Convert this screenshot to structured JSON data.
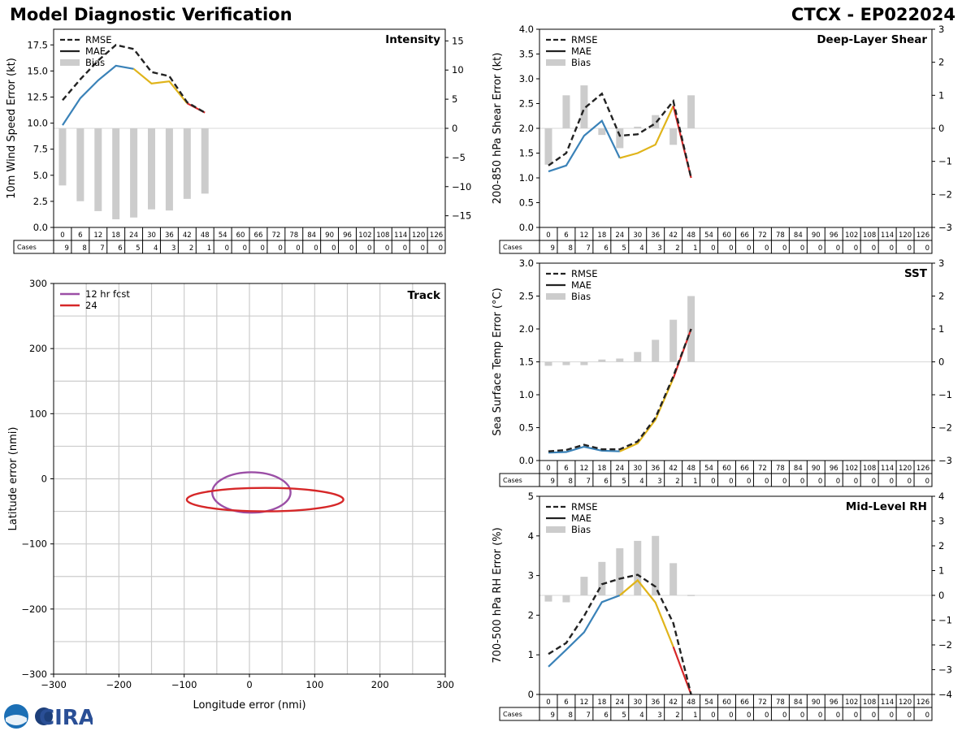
{
  "header": {
    "title": "Model Diagnostic Verification",
    "storm_id": "CTCX - EP022024"
  },
  "colors": {
    "seg1": "#3a82b8",
    "seg2": "#e0b41a",
    "seg3": "#d62728",
    "rmse": "#222222",
    "bias": "#cccccc",
    "ellipse12": "#9b4fa6",
    "ellipse24": "#d62728",
    "grid": "#cccccc"
  },
  "table": {
    "cases_label": "Cases",
    "hours": [
      "0",
      "6",
      "12",
      "18",
      "24",
      "30",
      "36",
      "42",
      "48",
      "54",
      "60",
      "66",
      "72",
      "78",
      "84",
      "90",
      "96",
      "102",
      "108",
      "114",
      "120",
      "126"
    ],
    "cases": [
      "9",
      "8",
      "7",
      "6",
      "5",
      "4",
      "3",
      "2",
      "1",
      "0",
      "0",
      "0",
      "0",
      "0",
      "0",
      "0",
      "0",
      "0",
      "0",
      "0",
      "0",
      "0"
    ]
  },
  "chart_data": [
    {
      "id": "intensity",
      "type": "line",
      "title": "Intensity",
      "ylabel": "10m Wind Speed Error (kt)",
      "ylim": [
        0,
        19
      ],
      "yticks": [
        "0.0",
        "2.5",
        "5.0",
        "7.5",
        "10.0",
        "12.5",
        "15.0",
        "17.5"
      ],
      "ytick_values": [
        0,
        2.5,
        5,
        7.5,
        10,
        12.5,
        15,
        17.5
      ],
      "y2lim": [
        -17,
        17
      ],
      "y2ticks": [
        "−15",
        "−10",
        "−5",
        "0",
        "5",
        "10",
        "15"
      ],
      "y2tick_values": [
        -15,
        -10,
        -5,
        0,
        5,
        10,
        15
      ],
      "legend": [
        "RMSE",
        "MAE",
        "Bias"
      ],
      "x": [
        0,
        6,
        12,
        18,
        24,
        30,
        36,
        42,
        48
      ],
      "rmse": [
        12.2,
        14.2,
        16.0,
        17.5,
        17.1,
        14.9,
        14.5,
        12.0,
        11.0
      ],
      "mae": [
        9.8,
        12.4,
        14.1,
        15.5,
        15.2,
        13.8,
        14.0,
        11.9,
        11.0
      ],
      "bias": [
        -9.8,
        -12.5,
        -14.2,
        -15.6,
        -15.3,
        -13.9,
        -14.1,
        -12.1,
        -11.2
      ]
    },
    {
      "id": "shear",
      "type": "line",
      "title": "Deep-Layer Shear",
      "ylabel": "200-850 hPa Shear Error (kt)",
      "ylim": [
        0,
        4
      ],
      "yticks": [
        "0.0",
        "0.5",
        "1.0",
        "1.5",
        "2.0",
        "2.5",
        "3.0",
        "3.5",
        "4.0"
      ],
      "ytick_values": [
        0,
        0.5,
        1,
        1.5,
        2,
        2.5,
        3,
        3.5,
        4
      ],
      "y2lim": [
        -3,
        3
      ],
      "y2ticks": [
        "−3",
        "−2",
        "−1",
        "0",
        "1",
        "2",
        "3"
      ],
      "y2tick_values": [
        -3,
        -2,
        -1,
        0,
        1,
        2,
        3
      ],
      "legend": [
        "RMSE",
        "MAE",
        "Bias"
      ],
      "x": [
        0,
        6,
        12,
        18,
        24,
        30,
        36,
        42,
        48
      ],
      "rmse": [
        1.25,
        1.5,
        2.4,
        2.7,
        1.85,
        1.88,
        2.1,
        2.55,
        1.0
      ],
      "mae": [
        1.13,
        1.25,
        1.85,
        2.15,
        1.4,
        1.5,
        1.67,
        2.45,
        1.0
      ],
      "bias": [
        -1.1,
        1.0,
        1.3,
        -0.2,
        -0.6,
        0.05,
        0.4,
        -0.5,
        1.0
      ]
    },
    {
      "id": "sst",
      "type": "line",
      "title": "SST",
      "ylabel": "Sea Surface Temp Error (°C)",
      "ylim": [
        0,
        3
      ],
      "yticks": [
        "0.0",
        "0.5",
        "1.0",
        "1.5",
        "2.0",
        "2.5",
        "3.0"
      ],
      "ytick_values": [
        0,
        0.5,
        1,
        1.5,
        2,
        2.5,
        3
      ],
      "y2lim": [
        -3,
        3
      ],
      "y2ticks": [
        "−3",
        "−2",
        "−1",
        "0",
        "1",
        "2",
        "3"
      ],
      "y2tick_values": [
        -3,
        -2,
        -1,
        0,
        1,
        2,
        3
      ],
      "legend": [
        "RMSE",
        "MAE",
        "Bias"
      ],
      "x": [
        0,
        6,
        12,
        18,
        24,
        30,
        36,
        42,
        48
      ],
      "rmse": [
        0.14,
        0.16,
        0.24,
        0.17,
        0.17,
        0.29,
        0.65,
        1.28,
        2.0
      ],
      "mae": [
        0.12,
        0.13,
        0.21,
        0.15,
        0.14,
        0.26,
        0.62,
        1.25,
        2.0
      ],
      "bias": [
        -0.12,
        -0.1,
        -0.1,
        0.07,
        0.1,
        0.3,
        0.67,
        1.28,
        2.0
      ]
    },
    {
      "id": "rh",
      "type": "line",
      "title": "Mid-Level RH",
      "ylabel": "700-500 hPa RH Error (%)",
      "ylim": [
        0,
        5
      ],
      "yticks": [
        "0",
        "1",
        "2",
        "3",
        "4",
        "5"
      ],
      "ytick_values": [
        0,
        1,
        2,
        3,
        4,
        5
      ],
      "y2lim": [
        -4,
        4
      ],
      "y2ticks": [
        "−4",
        "−3",
        "−2",
        "−1",
        "0",
        "1",
        "2",
        "3",
        "4"
      ],
      "y2tick_values": [
        -4,
        -3,
        -2,
        -1,
        0,
        1,
        2,
        3,
        4
      ],
      "legend": [
        "RMSE",
        "MAE",
        "Bias"
      ],
      "x": [
        0,
        6,
        12,
        18,
        24,
        30,
        36,
        42,
        48
      ],
      "rmse": [
        1.02,
        1.3,
        1.98,
        2.78,
        2.92,
        3.02,
        2.72,
        1.8,
        0.0
      ],
      "mae": [
        0.7,
        1.13,
        1.57,
        2.33,
        2.5,
        2.88,
        2.32,
        1.2,
        0.0
      ],
      "bias": [
        -0.25,
        -0.28,
        0.75,
        1.35,
        1.9,
        2.2,
        2.4,
        1.3,
        0.02
      ]
    },
    {
      "id": "track",
      "type": "scatter",
      "title": "Track",
      "xlabel": "Longitude error (nmi)",
      "ylabel": "Latitude error (nmi)",
      "xlim": [
        -300,
        300
      ],
      "ylim": [
        -300,
        300
      ],
      "xticks": [
        "−300",
        "−200",
        "−100",
        "0",
        "100",
        "200",
        "300"
      ],
      "xtick_values": [
        -300,
        -200,
        -100,
        0,
        100,
        200,
        300
      ],
      "yticks": [
        "−300",
        "−200",
        "−100",
        "0",
        "100",
        "200",
        "300"
      ],
      "ytick_values": [
        -300,
        -200,
        -100,
        0,
        100,
        200,
        300
      ],
      "legend": [
        "12 hr fcst",
        "24"
      ],
      "ellipses": [
        {
          "name": "12 hr fcst",
          "cx": 3,
          "cy": -21,
          "rx": 60,
          "ry": 31
        },
        {
          "name": "24",
          "cx": 24,
          "cy": -32,
          "rx": 120,
          "ry": 18
        }
      ]
    }
  ]
}
